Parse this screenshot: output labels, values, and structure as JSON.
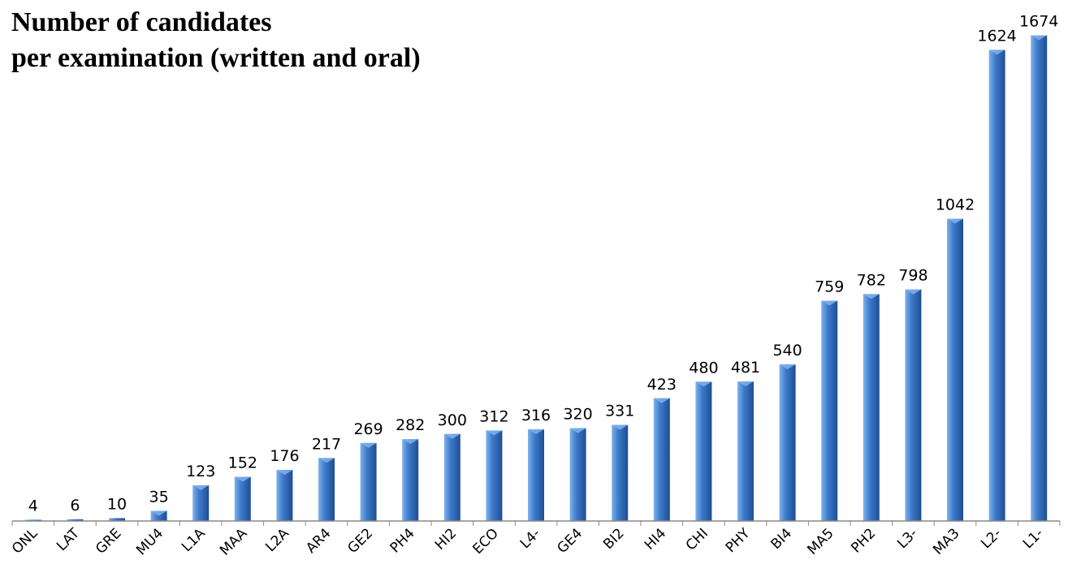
{
  "title": {
    "line1": "Number of candidates",
    "line2": "per examination (written and oral)"
  },
  "colors": {
    "bar_light": "#7FB2EC",
    "bar_mid": "#3D7ACB",
    "bar_dark": "#1E4E93",
    "axis": "#888888"
  },
  "chart_data": {
    "type": "bar",
    "title": "Number of candidates per examination (written and oral)",
    "xlabel": "",
    "ylabel": "",
    "grid": false,
    "legend": "none",
    "ylim": [
      0,
      1700
    ],
    "categories": [
      "ONL",
      "LAT",
      "GRE",
      "MU4",
      "L1A",
      "MAA",
      "L2A",
      "AR4",
      "GE2",
      "PH4",
      "HI2",
      "ECO",
      "L4-",
      "GE4",
      "BI2",
      "HI4",
      "CHI",
      "PHY",
      "BI4",
      "MA5",
      "PH2",
      "L3-",
      "MA3",
      "L2-",
      "L1-"
    ],
    "values": [
      4,
      6,
      10,
      35,
      123,
      152,
      176,
      217,
      269,
      282,
      300,
      312,
      316,
      320,
      331,
      423,
      480,
      481,
      540,
      759,
      782,
      798,
      1042,
      1624,
      1674
    ],
    "data_labels": [
      "4",
      "6",
      "10",
      "35",
      "123",
      "152",
      "176",
      "217",
      "269",
      "282",
      "300",
      "312",
      "316",
      "320",
      "331",
      "423",
      "480",
      "481",
      "540",
      "759",
      "782",
      "798",
      "1042",
      "1624",
      "1674"
    ]
  }
}
